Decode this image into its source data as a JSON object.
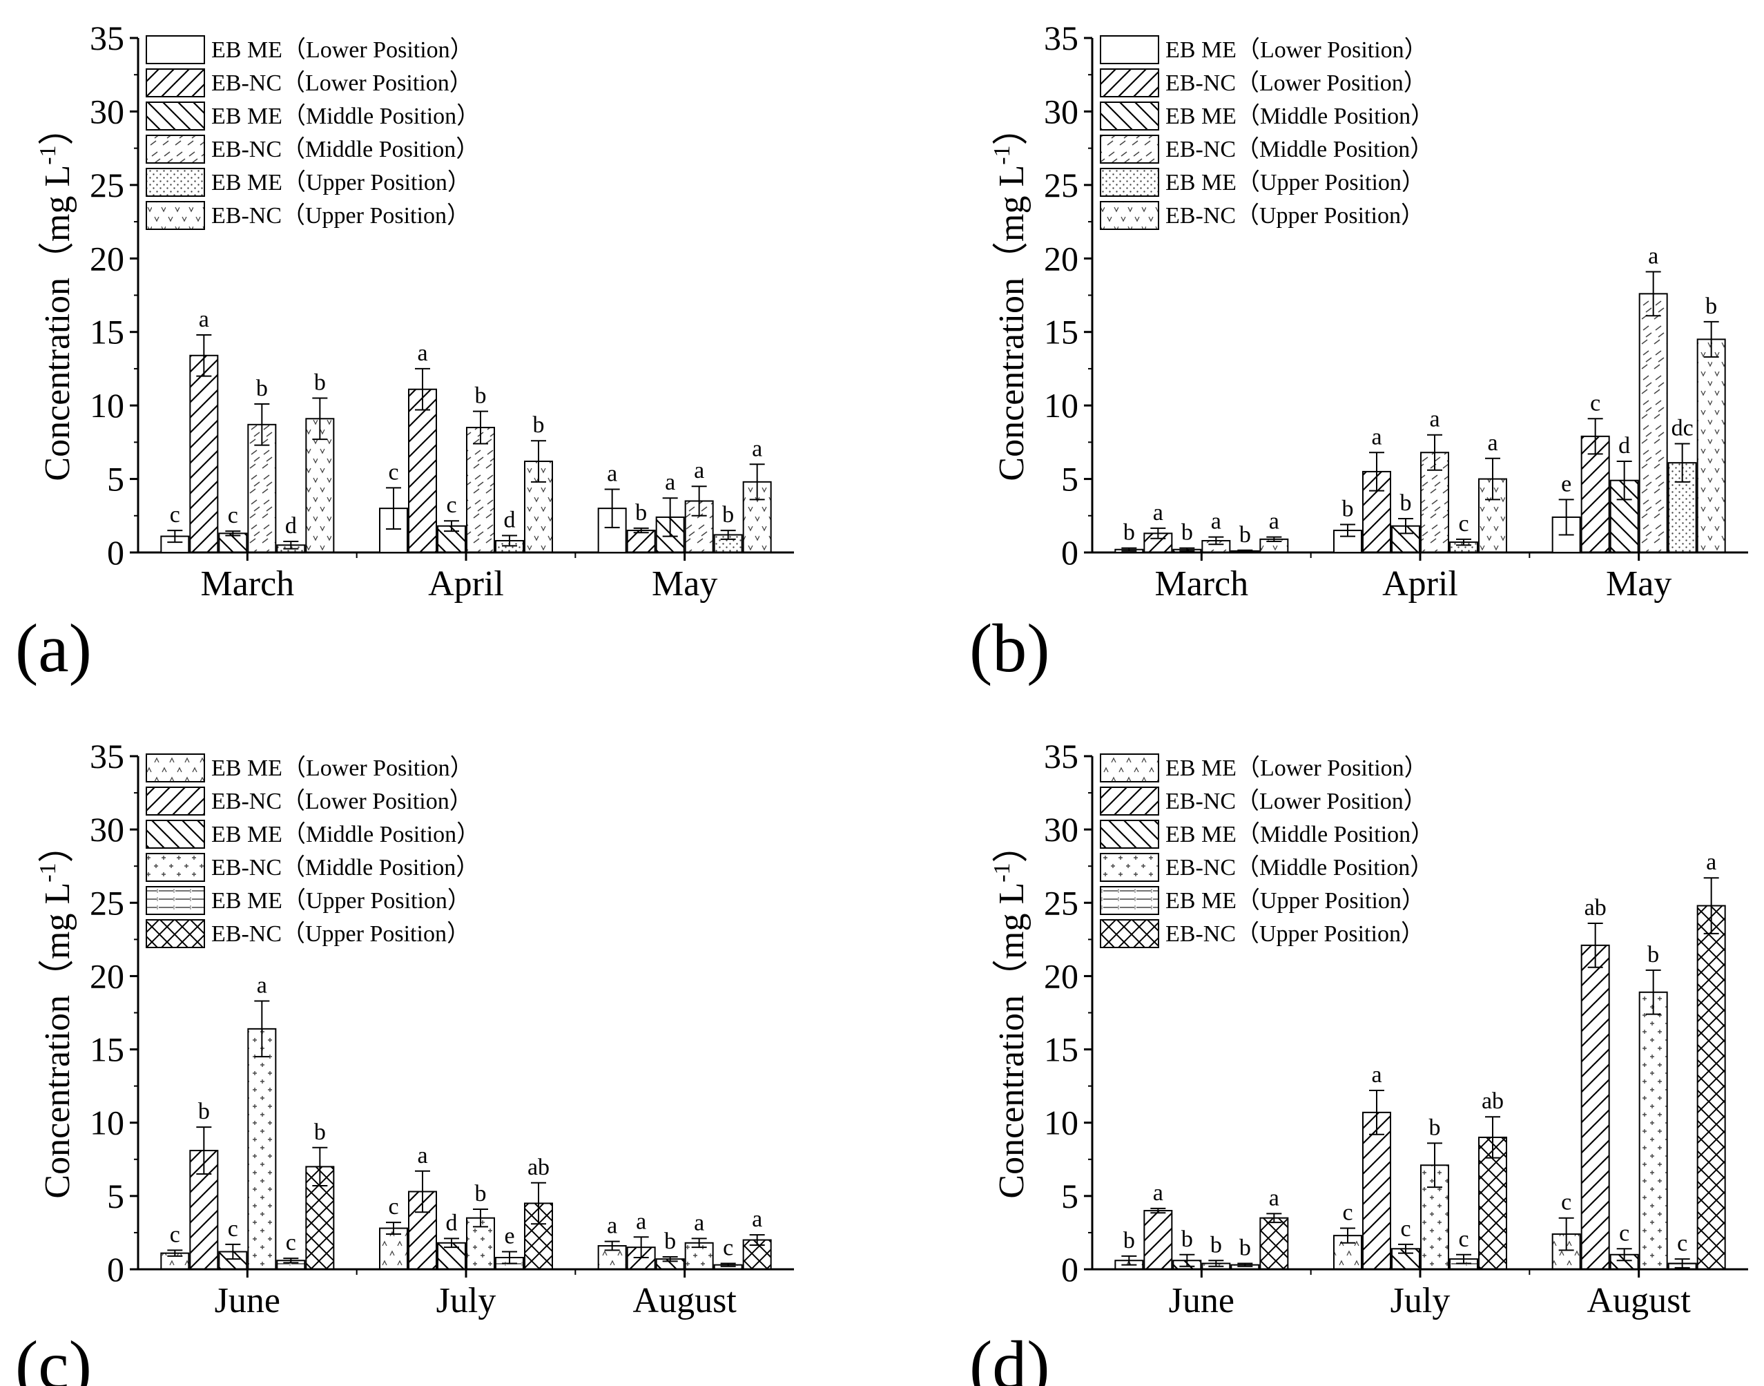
{
  "figure": {
    "y_axis_label": "Concentration（mg L",
    "y_axis_superscript": "-1",
    "y_axis_label_end": "）"
  },
  "chart_data": [
    {
      "type": "bar",
      "panel": "(a)",
      "categories": [
        "March",
        "April",
        "May"
      ],
      "ylim": [
        0,
        35
      ],
      "yticks": [
        0,
        5,
        10,
        15,
        20,
        25,
        30,
        35
      ],
      "ylabel": "Concentration（mg L-1）",
      "legend_position": "top-left",
      "series": [
        {
          "name": "EB ME（Lower Position）",
          "pattern": "blank",
          "values": [
            1.1,
            3.0,
            3.0
          ],
          "errors": [
            0.4,
            1.4,
            1.3
          ],
          "labels": [
            "c",
            "c",
            "a"
          ]
        },
        {
          "name": "EB-NC（Lower Position）",
          "pattern": "hatch",
          "values": [
            13.4,
            11.1,
            1.5
          ],
          "errors": [
            1.4,
            1.4,
            0.15
          ],
          "labels": [
            "a",
            "a",
            "b"
          ]
        },
        {
          "name": "EB ME（Middle Position）",
          "pattern": "backhatch",
          "values": [
            1.3,
            1.8,
            2.4
          ],
          "errors": [
            0.15,
            0.35,
            1.3
          ],
          "labels": [
            "c",
            "c",
            "a"
          ]
        },
        {
          "name": "EB-NC（Middle Position）",
          "pattern": "dashes",
          "values": [
            8.7,
            8.5,
            3.5
          ],
          "errors": [
            1.4,
            1.1,
            1.0
          ],
          "labels": [
            "b",
            "b",
            "a"
          ]
        },
        {
          "name": "EB ME（Upper Position）",
          "pattern": "dots",
          "values": [
            0.5,
            0.8,
            1.2
          ],
          "errors": [
            0.25,
            0.35,
            0.3
          ],
          "labels": [
            "d",
            "d",
            "b"
          ]
        },
        {
          "name": "EB-NC（Upper Position）",
          "pattern": "vees",
          "values": [
            9.1,
            6.2,
            4.8
          ],
          "errors": [
            1.4,
            1.4,
            1.2
          ],
          "labels": [
            "b",
            "b",
            "a"
          ]
        }
      ]
    },
    {
      "type": "bar",
      "panel": "(b)",
      "categories": [
        "March",
        "April",
        "May"
      ],
      "ylim": [
        0,
        35
      ],
      "yticks": [
        0,
        5,
        10,
        15,
        20,
        25,
        30,
        35
      ],
      "ylabel": "Concentration（mg L-1）",
      "legend_position": "top-left",
      "series": [
        {
          "name": "EB ME（Lower Position）",
          "pattern": "blank",
          "values": [
            0.2,
            1.5,
            2.4
          ],
          "errors": [
            0.1,
            0.4,
            1.2
          ],
          "labels": [
            "b",
            "b",
            "e"
          ]
        },
        {
          "name": "EB-NC（Lower Position）",
          "pattern": "hatch",
          "values": [
            1.3,
            5.5,
            7.9
          ],
          "errors": [
            0.35,
            1.3,
            1.2
          ],
          "labels": [
            "a",
            "a",
            "c"
          ]
        },
        {
          "name": "EB ME（Middle Position）",
          "pattern": "backhatch",
          "values": [
            0.2,
            1.8,
            4.9
          ],
          "errors": [
            0.1,
            0.5,
            1.3
          ],
          "labels": [
            "b",
            "b",
            "d"
          ]
        },
        {
          "name": "EB-NC（Middle Position）",
          "pattern": "dashes",
          "values": [
            0.8,
            6.8,
            17.6
          ],
          "errors": [
            0.25,
            1.2,
            1.5
          ],
          "labels": [
            "a",
            "a",
            "a"
          ]
        },
        {
          "name": "EB ME（Upper Position）",
          "pattern": "dots",
          "values": [
            0.1,
            0.7,
            6.1
          ],
          "errors": [
            0.05,
            0.2,
            1.3
          ],
          "labels": [
            "b",
            "c",
            "dc"
          ]
        },
        {
          "name": "EB-NC（Upper Position）",
          "pattern": "vees",
          "values": [
            0.9,
            5.0,
            14.5
          ],
          "errors": [
            0.15,
            1.4,
            1.2
          ],
          "labels": [
            "a",
            "a",
            "b"
          ]
        }
      ]
    },
    {
      "type": "bar",
      "panel": "(c)",
      "categories": [
        "June",
        "July",
        "August"
      ],
      "ylim": [
        0,
        35
      ],
      "yticks": [
        0,
        5,
        10,
        15,
        20,
        25,
        30,
        35
      ],
      "ylabel": "Concentration（mg L-1）",
      "legend_position": "top-left",
      "series": [
        {
          "name": "EB ME（Lower Position）",
          "pattern": "carets",
          "values": [
            1.1,
            2.8,
            1.6
          ],
          "errors": [
            0.2,
            0.4,
            0.3
          ],
          "labels": [
            "c",
            "c",
            "a"
          ]
        },
        {
          "name": "EB-NC（Lower Position）",
          "pattern": "hatch",
          "values": [
            8.1,
            5.3,
            1.5
          ],
          "errors": [
            1.6,
            1.4,
            0.7
          ],
          "labels": [
            "b",
            "a",
            "a"
          ]
        },
        {
          "name": "EB ME（Middle Position）",
          "pattern": "backhatch",
          "values": [
            1.2,
            1.8,
            0.7
          ],
          "errors": [
            0.5,
            0.3,
            0.15
          ],
          "labels": [
            "c",
            "d",
            "b"
          ]
        },
        {
          "name": "EB-NC（Middle Position）",
          "pattern": "plus",
          "values": [
            16.4,
            3.5,
            1.8
          ],
          "errors": [
            1.9,
            0.6,
            0.3
          ],
          "labels": [
            "a",
            "b",
            "a"
          ]
        },
        {
          "name": "EB ME（Upper Position）",
          "pattern": "horiz",
          "values": [
            0.6,
            0.8,
            0.3
          ],
          "errors": [
            0.15,
            0.4,
            0.1
          ],
          "labels": [
            "c",
            "e",
            "c"
          ]
        },
        {
          "name": "EB-NC（Upper Position）",
          "pattern": "cross",
          "values": [
            7.0,
            4.5,
            2.0
          ],
          "errors": [
            1.3,
            1.4,
            0.35
          ],
          "labels": [
            "b",
            "ab",
            "a"
          ]
        }
      ]
    },
    {
      "type": "bar",
      "panel": "(d)",
      "categories": [
        "June",
        "July",
        "August"
      ],
      "ylim": [
        0,
        35
      ],
      "yticks": [
        0,
        5,
        10,
        15,
        20,
        25,
        30,
        35
      ],
      "ylabel": "Concentration（mg L-1）",
      "legend_position": "top-left",
      "series": [
        {
          "name": "EB ME（Lower Position）",
          "pattern": "carets",
          "values": [
            0.6,
            2.3,
            2.4
          ],
          "errors": [
            0.3,
            0.5,
            1.1
          ],
          "labels": [
            "b",
            "c",
            "c"
          ]
        },
        {
          "name": "EB-NC（Lower Position）",
          "pattern": "hatch",
          "values": [
            4.0,
            10.7,
            22.1
          ],
          "errors": [
            0.15,
            1.5,
            1.5
          ],
          "labels": [
            "a",
            "a",
            "ab"
          ]
        },
        {
          "name": "EB ME（Middle Position）",
          "pattern": "backhatch",
          "values": [
            0.6,
            1.4,
            1.0
          ],
          "errors": [
            0.4,
            0.3,
            0.4
          ],
          "labels": [
            "b",
            "c",
            "c"
          ]
        },
        {
          "name": "EB-NC（Middle Position）",
          "pattern": "plus",
          "values": [
            0.4,
            7.1,
            18.9
          ],
          "errors": [
            0.2,
            1.5,
            1.5
          ],
          "labels": [
            "b",
            "b",
            "b"
          ]
        },
        {
          "name": "EB ME（Upper Position）",
          "pattern": "horiz",
          "values": [
            0.3,
            0.7,
            0.4
          ],
          "errors": [
            0.1,
            0.3,
            0.3
          ],
          "labels": [
            "b",
            "c",
            "c"
          ]
        },
        {
          "name": "EB-NC（Upper Position）",
          "pattern": "cross",
          "values": [
            3.5,
            9.0,
            24.8
          ],
          "errors": [
            0.3,
            1.4,
            1.9
          ],
          "labels": [
            "a",
            "ab",
            "a"
          ]
        }
      ]
    }
  ]
}
